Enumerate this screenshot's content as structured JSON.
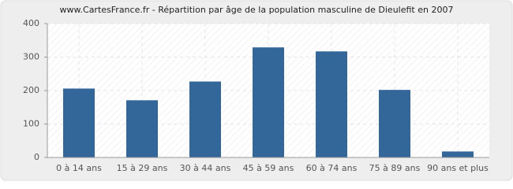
{
  "chart_data": {
    "type": "bar",
    "title": "www.CartesFrance.fr - Répartition par âge de la population masculine de Dieulefit en 2007",
    "categories": [
      "0 à 14 ans",
      "15 à 29 ans",
      "30 à 44 ans",
      "45 à 59 ans",
      "60 à 74 ans",
      "75 à 89 ans",
      "90 ans et plus"
    ],
    "values": [
      206,
      171,
      227,
      329,
      317,
      202,
      18
    ],
    "color": "#336699",
    "ylim": [
      0,
      400
    ],
    "yticks": [
      0,
      100,
      200,
      300,
      400
    ],
    "grid": true
  }
}
